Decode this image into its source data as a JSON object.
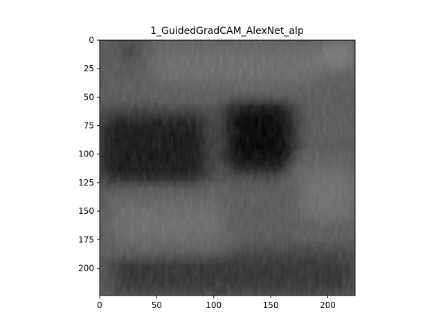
{
  "chart_data": {
    "type": "heatmap",
    "title": "1_GuidedGradCAM_AlexNet_alp",
    "xlabel": "",
    "ylabel": "",
    "xlim": [
      0,
      224
    ],
    "ylim": [
      224,
      0
    ],
    "x_ticks": [
      0,
      50,
      100,
      150,
      200
    ],
    "y_ticks": [
      0,
      25,
      50,
      75,
      100,
      125,
      150,
      175,
      200
    ],
    "grid": false,
    "colormap": "grayscale",
    "background_gray": "#565656",
    "dark_regions": [
      {
        "label": "left-dark-band",
        "x_range": [
          0,
          95
        ],
        "y_range": [
          65,
          125
        ],
        "intensity": 0.8
      },
      {
        "label": "center-dark-blob",
        "x_range": [
          110,
          170
        ],
        "y_range": [
          55,
          115
        ],
        "intensity": 1.0
      },
      {
        "label": "upper-left-shade",
        "x_range": [
          20,
          45
        ],
        "y_range": [
          0,
          20
        ],
        "intensity": 0.35
      },
      {
        "label": "lower-band",
        "x_range": [
          10,
          224
        ],
        "y_range": [
          185,
          224
        ],
        "intensity": 0.45
      }
    ],
    "light_regions": [
      {
        "label": "top-right-light",
        "x_range": [
          195,
          224
        ],
        "y_range": [
          0,
          25
        ],
        "intensity": 0.35
      },
      {
        "label": "top-light-band",
        "x_range": [
          45,
          195
        ],
        "y_range": [
          5,
          40
        ],
        "intensity": 0.18
      },
      {
        "label": "mid-right-light",
        "x_range": [
          175,
          224
        ],
        "y_range": [
          110,
          160
        ],
        "intensity": 0.2
      },
      {
        "label": "lower-mid-light",
        "x_range": [
          10,
          110
        ],
        "y_range": [
          140,
          180
        ],
        "intensity": 0.18
      }
    ]
  }
}
